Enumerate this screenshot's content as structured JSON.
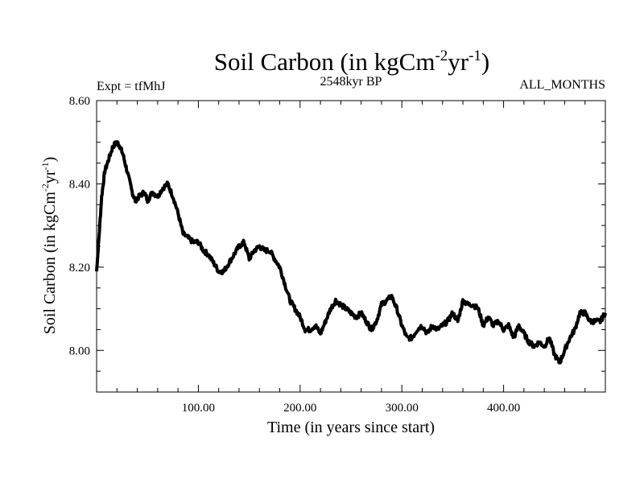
{
  "chart_data": {
    "type": "line",
    "title": {
      "main": "Soil Carbon (in kgCm",
      "sup1": "-2",
      "mid": "yr",
      "sup2": "-1",
      "end": ")"
    },
    "subtitle_left": "Expt = tfMhJ",
    "subtitle_center": "2548kyr BP",
    "subtitle_right": "ALL_MONTHS",
    "xlabel": "Time (in years since start)",
    "ylabel": {
      "main": "Soil Carbon (in kgCm",
      "sup1": "-2",
      "mid": "yr",
      "sup2": "-1",
      "end": ")"
    },
    "xlim": [
      0,
      500
    ],
    "ylim": [
      7.9,
      8.6
    ],
    "xticks": [
      100,
      200,
      300,
      400
    ],
    "xtick_labels": [
      "100.00",
      "200.00",
      "300.00",
      "400.00"
    ],
    "yticks": [
      8.0,
      8.2,
      8.4,
      8.6
    ],
    "ytick_labels": [
      "8.00",
      "8.20",
      "8.40",
      "8.60"
    ],
    "series": [
      {
        "name": "Soil Carbon",
        "x": [
          0,
          2,
          5,
          8,
          12,
          16,
          20,
          23,
          26,
          30,
          35,
          38,
          42,
          47,
          50,
          55,
          60,
          65,
          70,
          75,
          80,
          85,
          90,
          95,
          100,
          105,
          110,
          115,
          120,
          125,
          130,
          135,
          140,
          145,
          150,
          155,
          160,
          165,
          170,
          175,
          180,
          185,
          190,
          195,
          200,
          205,
          210,
          215,
          220,
          225,
          230,
          235,
          240,
          245,
          250,
          255,
          260,
          265,
          270,
          275,
          280,
          285,
          290,
          295,
          300,
          305,
          310,
          315,
          320,
          325,
          330,
          335,
          340,
          345,
          350,
          355,
          360,
          365,
          370,
          375,
          380,
          385,
          390,
          395,
          400,
          405,
          410,
          415,
          420,
          425,
          430,
          435,
          440,
          445,
          450,
          455,
          460,
          465,
          470,
          475,
          480,
          485,
          490,
          495,
          500
        ],
        "y": [
          8.19,
          8.26,
          8.37,
          8.43,
          8.46,
          8.49,
          8.5,
          8.49,
          8.47,
          8.43,
          8.38,
          8.36,
          8.37,
          8.38,
          8.36,
          8.38,
          8.37,
          8.39,
          8.4,
          8.37,
          8.33,
          8.28,
          8.27,
          8.26,
          8.26,
          8.24,
          8.23,
          8.21,
          8.19,
          8.19,
          8.21,
          8.23,
          8.25,
          8.26,
          8.22,
          8.24,
          8.25,
          8.24,
          8.24,
          8.22,
          8.2,
          8.16,
          8.12,
          8.1,
          8.08,
          8.05,
          8.05,
          8.06,
          8.04,
          8.07,
          8.1,
          8.12,
          8.11,
          8.1,
          8.09,
          8.08,
          8.09,
          8.07,
          8.05,
          8.07,
          8.11,
          8.12,
          8.13,
          8.1,
          8.06,
          8.03,
          8.03,
          8.05,
          8.06,
          8.04,
          8.06,
          8.05,
          8.06,
          8.07,
          8.09,
          8.07,
          8.12,
          8.11,
          8.11,
          8.1,
          8.06,
          8.08,
          8.06,
          8.07,
          8.05,
          8.06,
          8.03,
          8.06,
          8.04,
          8.02,
          8.01,
          8.02,
          8.01,
          8.03,
          7.99,
          7.97,
          8.0,
          8.03,
          8.05,
          8.09,
          8.09,
          8.07,
          8.07,
          8.07,
          8.09
        ]
      }
    ]
  }
}
